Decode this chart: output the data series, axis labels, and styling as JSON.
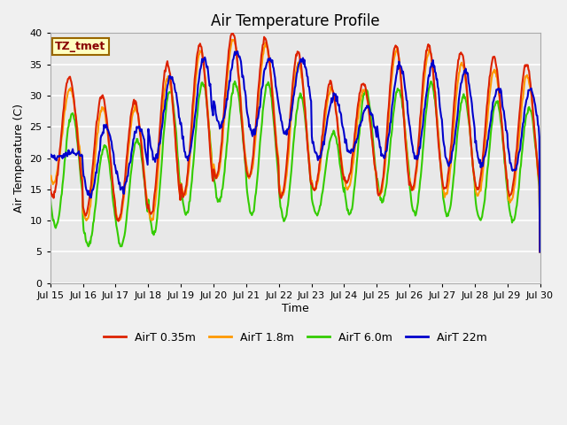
{
  "title": "Air Temperature Profile",
  "xlabel": "Time",
  "ylabel": "Air Temperature (C)",
  "ylim": [
    0,
    40
  ],
  "yticks": [
    0,
    5,
    10,
    15,
    20,
    25,
    30,
    35,
    40
  ],
  "x_tick_labels": [
    "Jul 15",
    "Jul 16",
    "Jul 17",
    "Jul 18",
    "Jul 19",
    "Jul 20",
    "Jul 21",
    "Jul 22",
    "Jul 23",
    "Jul 24",
    "Jul 25",
    "Jul 26",
    "Jul 27",
    "Jul 28",
    "Jul 29",
    "Jul 30"
  ],
  "colors": {
    "red": "#dd2200",
    "orange": "#ff9900",
    "green": "#33cc00",
    "blue": "#0000cc"
  },
  "legend_labels": [
    "AirT 0.35m",
    "AirT 1.8m",
    "AirT 6.0m",
    "AirT 22m"
  ],
  "station_label": "TZ_tmet",
  "figure_bg": "#f0f0f0",
  "plot_bg": "#e8e8e8",
  "grid_color": "#ffffff",
  "title_fontsize": 12,
  "label_fontsize": 9,
  "tick_fontsize": 8,
  "legend_fontsize": 9,
  "linewidth": 1.5
}
